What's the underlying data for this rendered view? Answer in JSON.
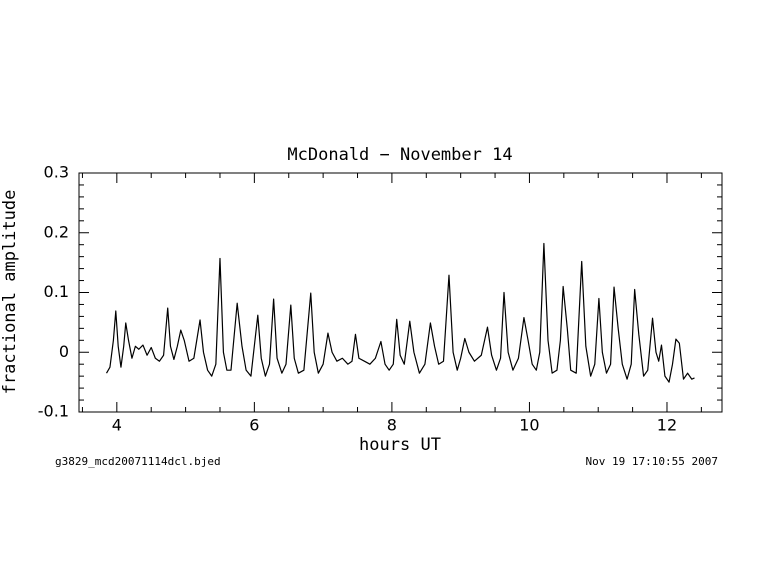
{
  "chart_data": {
    "type": "line",
    "title": "McDonald − November 14",
    "xlabel": "hours UT",
    "ylabel": "fractional amplitude",
    "footer_left": "g3829_mcd20071114dcl.bjed",
    "footer_right": "Nov 19 17:10:55 2007",
    "color": "#000000",
    "xlim": [
      3.45,
      12.8
    ],
    "ylim": [
      -0.1,
      0.3
    ],
    "xticks": [
      4,
      6,
      8,
      10,
      12
    ],
    "yticks": [
      -0.1,
      0,
      0.1,
      0.2,
      0.3
    ],
    "xminorticks": [
      3.5,
      4.5,
      5,
      5.5,
      6.5,
      7,
      7.5,
      8.5,
      9,
      9.5,
      10.5,
      11,
      11.5,
      12.5
    ],
    "yminorticks": [
      -0.08,
      -0.06,
      -0.04,
      -0.02,
      0.02,
      0.04,
      0.06,
      0.08,
      0.12,
      0.14,
      0.16,
      0.18,
      0.22,
      0.24,
      0.26,
      0.28
    ],
    "x": [
      3.85,
      3.9,
      3.95,
      3.985,
      4.02,
      4.06,
      4.1,
      4.13,
      4.17,
      4.22,
      4.27,
      4.32,
      4.38,
      4.44,
      4.5,
      4.56,
      4.62,
      4.68,
      4.74,
      4.78,
      4.83,
      4.88,
      4.93,
      4.98,
      5.05,
      5.12,
      5.21,
      5.26,
      5.32,
      5.38,
      5.44,
      5.5,
      5.55,
      5.6,
      5.66,
      5.75,
      5.82,
      5.88,
      5.95,
      6.05,
      6.1,
      6.16,
      6.22,
      6.28,
      6.33,
      6.4,
      6.46,
      6.53,
      6.58,
      6.64,
      6.72,
      6.82,
      6.87,
      6.93,
      7.0,
      7.07,
      7.13,
      7.2,
      7.28,
      7.36,
      7.42,
      7.47,
      7.52,
      7.6,
      7.68,
      7.76,
      7.84,
      7.9,
      7.96,
      8.02,
      8.07,
      8.12,
      8.18,
      8.26,
      8.32,
      8.4,
      8.48,
      8.56,
      8.62,
      8.68,
      8.75,
      8.83,
      8.89,
      8.95,
      9.0,
      9.06,
      9.12,
      9.2,
      9.3,
      9.39,
      9.45,
      9.52,
      9.58,
      9.63,
      9.69,
      9.76,
      9.84,
      9.92,
      9.98,
      10.04,
      10.1,
      10.15,
      10.21,
      10.27,
      10.33,
      10.4,
      10.45,
      10.49,
      10.55,
      10.6,
      10.68,
      10.76,
      10.82,
      10.89,
      10.95,
      11.01,
      11.06,
      11.12,
      11.18,
      11.23,
      11.29,
      11.35,
      11.42,
      11.48,
      11.53,
      11.59,
      11.66,
      11.72,
      11.79,
      11.84,
      11.88,
      11.92,
      11.97,
      12.03,
      12.08,
      12.13,
      12.18,
      12.24,
      12.3,
      12.36,
      12.4
    ],
    "values": [
      -0.035,
      -0.025,
      0.02,
      0.069,
      0.01,
      -0.025,
      0.01,
      0.049,
      0.02,
      -0.01,
      0.01,
      0.005,
      0.012,
      -0.005,
      0.008,
      -0.01,
      -0.015,
      -0.005,
      0.074,
      0.01,
      -0.012,
      0.01,
      0.037,
      0.02,
      -0.015,
      -0.01,
      0.054,
      0.0,
      -0.03,
      -0.04,
      -0.02,
      0.157,
      0.0,
      -0.03,
      -0.03,
      0.082,
      0.01,
      -0.03,
      -0.04,
      0.062,
      -0.01,
      -0.04,
      -0.02,
      0.089,
      -0.01,
      -0.035,
      -0.02,
      0.079,
      -0.01,
      -0.035,
      -0.03,
      0.099,
      0.0,
      -0.035,
      -0.02,
      0.032,
      0.0,
      -0.015,
      -0.01,
      -0.02,
      -0.015,
      0.03,
      -0.01,
      -0.015,
      -0.02,
      -0.01,
      0.018,
      -0.02,
      -0.03,
      -0.02,
      0.055,
      -0.005,
      -0.02,
      0.052,
      0.0,
      -0.035,
      -0.02,
      0.049,
      0.01,
      -0.02,
      -0.015,
      0.129,
      0.0,
      -0.03,
      -0.01,
      0.023,
      0.0,
      -0.015,
      -0.005,
      0.042,
      -0.005,
      -0.03,
      -0.01,
      0.1,
      0.0,
      -0.03,
      -0.01,
      0.058,
      0.02,
      -0.02,
      -0.03,
      0.0,
      0.182,
      0.02,
      -0.035,
      -0.03,
      0.02,
      0.11,
      0.04,
      -0.03,
      -0.035,
      0.152,
      0.01,
      -0.04,
      -0.02,
      0.09,
      0.0,
      -0.035,
      -0.02,
      0.109,
      0.04,
      -0.02,
      -0.045,
      -0.02,
      0.105,
      0.03,
      -0.04,
      -0.03,
      0.057,
      0.0,
      -0.015,
      0.012,
      -0.04,
      -0.05,
      -0.02,
      0.022,
      0.015,
      -0.045,
      -0.035,
      -0.045,
      -0.043
    ]
  }
}
